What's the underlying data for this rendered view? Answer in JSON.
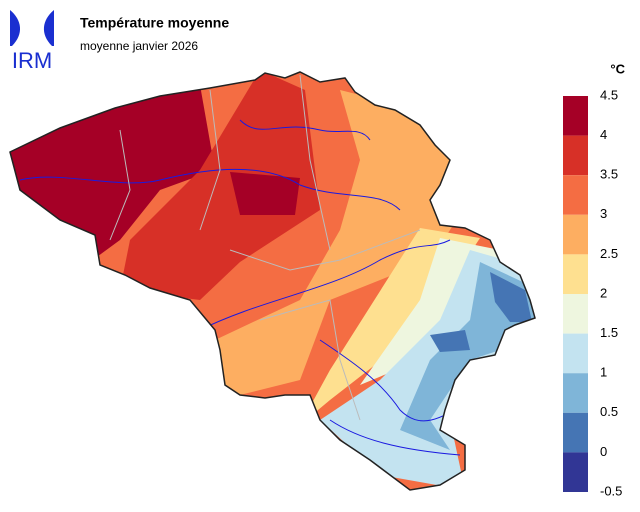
{
  "header": {
    "logo": "IRM",
    "title": "Température moyenne",
    "subtitle": "moyenne janvier 2026"
  },
  "legend": {
    "unit": "°C",
    "ticks": [
      4.5,
      4,
      3.5,
      3,
      2.5,
      2,
      1.5,
      1,
      0.5,
      0,
      -0.5
    ],
    "colors": [
      "#a50026",
      "#d73027",
      "#f46d43",
      "#fdae61",
      "#fee090",
      "#eef6df",
      "#c3e3f0",
      "#7fb5d8",
      "#4575b4",
      "#313695"
    ]
  }
}
